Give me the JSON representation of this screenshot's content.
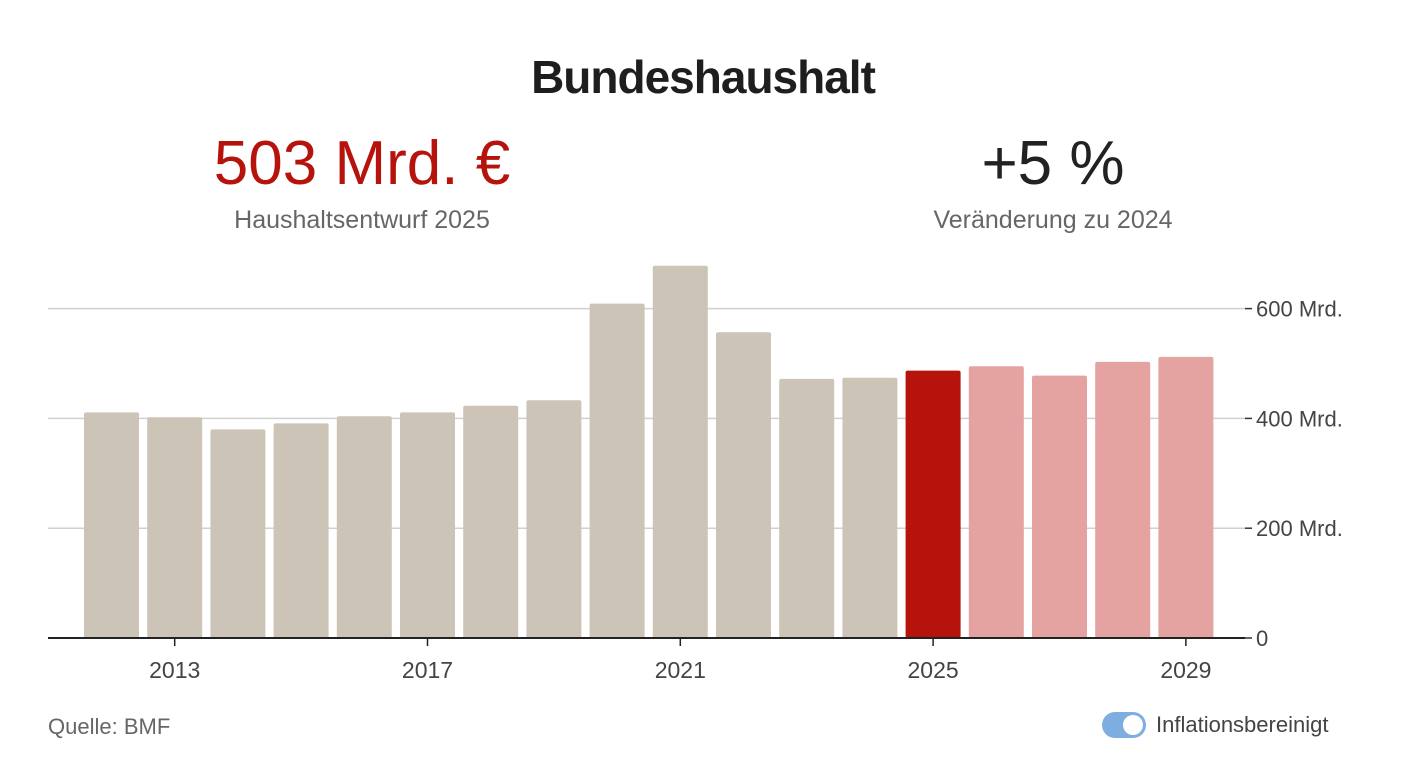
{
  "title": "Bundeshaushalt",
  "kpis": {
    "left": {
      "value": "503 Mrd. €",
      "label": "Haushaltsentwurf 2025"
    },
    "right": {
      "value": "+5 %",
      "label": "Veränderung zu 2024"
    }
  },
  "source": "Quelle: BMF",
  "toggle": {
    "label": "Inflationsbereinigt",
    "on": true
  },
  "colors": {
    "past": "#cdc4b8",
    "current": "#b5130b",
    "future": "#e4a2a0",
    "kpi_accent": "#b5130b",
    "toggle": "#7eaee0"
  },
  "chart_data": {
    "type": "bar",
    "title": "",
    "xlabel": "",
    "ylabel": "",
    "x": [
      2012,
      2013,
      2014,
      2015,
      2016,
      2017,
      2018,
      2019,
      2020,
      2021,
      2022,
      2023,
      2024,
      2025,
      2026,
      2027,
      2028,
      2029
    ],
    "values": [
      411,
      402,
      380,
      391,
      404,
      411,
      423,
      433,
      609,
      678,
      557,
      472,
      474,
      487,
      495,
      478,
      503,
      512
    ],
    "status": [
      "past",
      "past",
      "past",
      "past",
      "past",
      "past",
      "past",
      "past",
      "past",
      "past",
      "past",
      "past",
      "past",
      "current",
      "future",
      "future",
      "future",
      "future"
    ],
    "x_ticks": [
      "2013",
      "2017",
      "2021",
      "2025",
      "2029"
    ],
    "y_ticks": [
      {
        "value": 0,
        "label": "0"
      },
      {
        "value": 200,
        "label": "200 Mrd."
      },
      {
        "value": 400,
        "label": "400 Mrd."
      },
      {
        "value": 600,
        "label": "600 Mrd."
      }
    ],
    "ylim": [
      0,
      700
    ],
    "grid": true
  }
}
